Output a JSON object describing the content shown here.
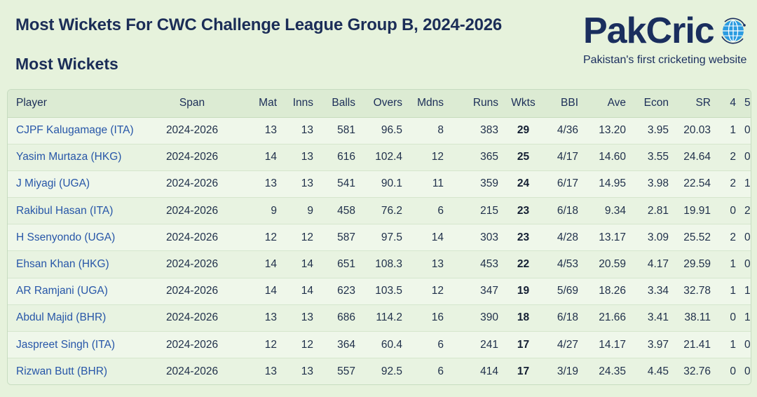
{
  "header": {
    "title": "Most Wickets For CWC Challenge League Group B, 2024-2026",
    "section": "Most Wickets"
  },
  "brand": {
    "name": "PakCric",
    "tagline": "Pakistan's first cricketing website",
    "icon": "globe-icon",
    "color": "#1a2e5e"
  },
  "table": {
    "columns": [
      "Player",
      "Span",
      "Mat",
      "Inns",
      "Balls",
      "Overs",
      "Mdns",
      "Runs",
      "Wkts",
      "BBI",
      "Ave",
      "Econ",
      "SR",
      "4",
      "5"
    ],
    "rows": [
      [
        "CJPF Kalugamage (ITA)",
        "2024-2026",
        "13",
        "13",
        "581",
        "96.5",
        "8",
        "383",
        "29",
        "4/36",
        "13.20",
        "3.95",
        "20.03",
        "1",
        "0"
      ],
      [
        "Yasim Murtaza (HKG)",
        "2024-2026",
        "14",
        "13",
        "616",
        "102.4",
        "12",
        "365",
        "25",
        "4/17",
        "14.60",
        "3.55",
        "24.64",
        "2",
        "0"
      ],
      [
        "J Miyagi (UGA)",
        "2024-2026",
        "13",
        "13",
        "541",
        "90.1",
        "11",
        "359",
        "24",
        "6/17",
        "14.95",
        "3.98",
        "22.54",
        "2",
        "1"
      ],
      [
        "Rakibul Hasan (ITA)",
        "2024-2026",
        "9",
        "9",
        "458",
        "76.2",
        "6",
        "215",
        "23",
        "6/18",
        "9.34",
        "2.81",
        "19.91",
        "0",
        "2"
      ],
      [
        "H Ssenyondo (UGA)",
        "2024-2026",
        "12",
        "12",
        "587",
        "97.5",
        "14",
        "303",
        "23",
        "4/28",
        "13.17",
        "3.09",
        "25.52",
        "2",
        "0"
      ],
      [
        "Ehsan Khan (HKG)",
        "2024-2026",
        "14",
        "14",
        "651",
        "108.3",
        "13",
        "453",
        "22",
        "4/53",
        "20.59",
        "4.17",
        "29.59",
        "1",
        "0"
      ],
      [
        "AR Ramjani (UGA)",
        "2024-2026",
        "14",
        "14",
        "623",
        "103.5",
        "12",
        "347",
        "19",
        "5/69",
        "18.26",
        "3.34",
        "32.78",
        "1",
        "1"
      ],
      [
        "Abdul Majid (BHR)",
        "2024-2026",
        "13",
        "13",
        "686",
        "114.2",
        "16",
        "390",
        "18",
        "6/18",
        "21.66",
        "3.41",
        "38.11",
        "0",
        "1"
      ],
      [
        "Jaspreet Singh (ITA)",
        "2024-2026",
        "12",
        "12",
        "364",
        "60.4",
        "6",
        "241",
        "17",
        "4/27",
        "14.17",
        "3.97",
        "21.41",
        "1",
        "0"
      ],
      [
        "Rizwan Butt (BHR)",
        "2024-2026",
        "13",
        "13",
        "557",
        "92.5",
        "6",
        "414",
        "17",
        "3/19",
        "24.35",
        "4.45",
        "32.76",
        "0",
        "0"
      ]
    ]
  }
}
